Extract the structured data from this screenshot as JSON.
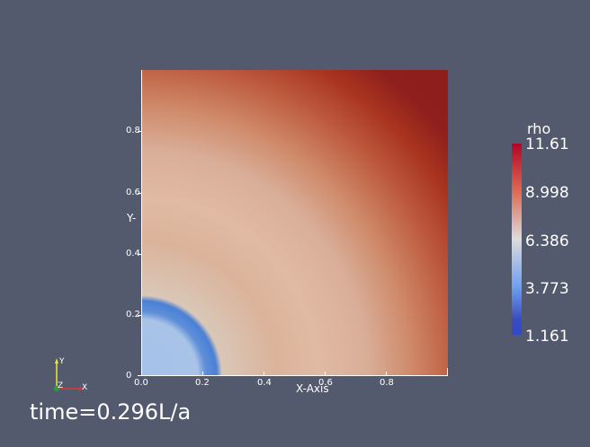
{
  "plot": {
    "x_axis_title": "X-Axis",
    "y_axis_title": "Y-",
    "x_ticks": [
      "0.0",
      "0.2",
      "0.4",
      "0.6",
      "0.8"
    ],
    "y_ticks": [
      "0",
      "0.2",
      "0.4",
      "0.6",
      "0.8"
    ]
  },
  "colorbar": {
    "title": "rho",
    "labels": [
      "11.61",
      "8.998",
      "6.386",
      "3.773",
      "1.161"
    ],
    "colors": {
      "high": "#b40426",
      "mid_high": "#dd6a52",
      "mid": "#dcdcdc",
      "mid_low": "#6f9ff0",
      "low": "#3b4cc0"
    }
  },
  "orientation": {
    "y_label": "Y",
    "z_label": "Z",
    "x_label": "X"
  },
  "annotation": {
    "time_text": "time=0.296L/a"
  }
}
